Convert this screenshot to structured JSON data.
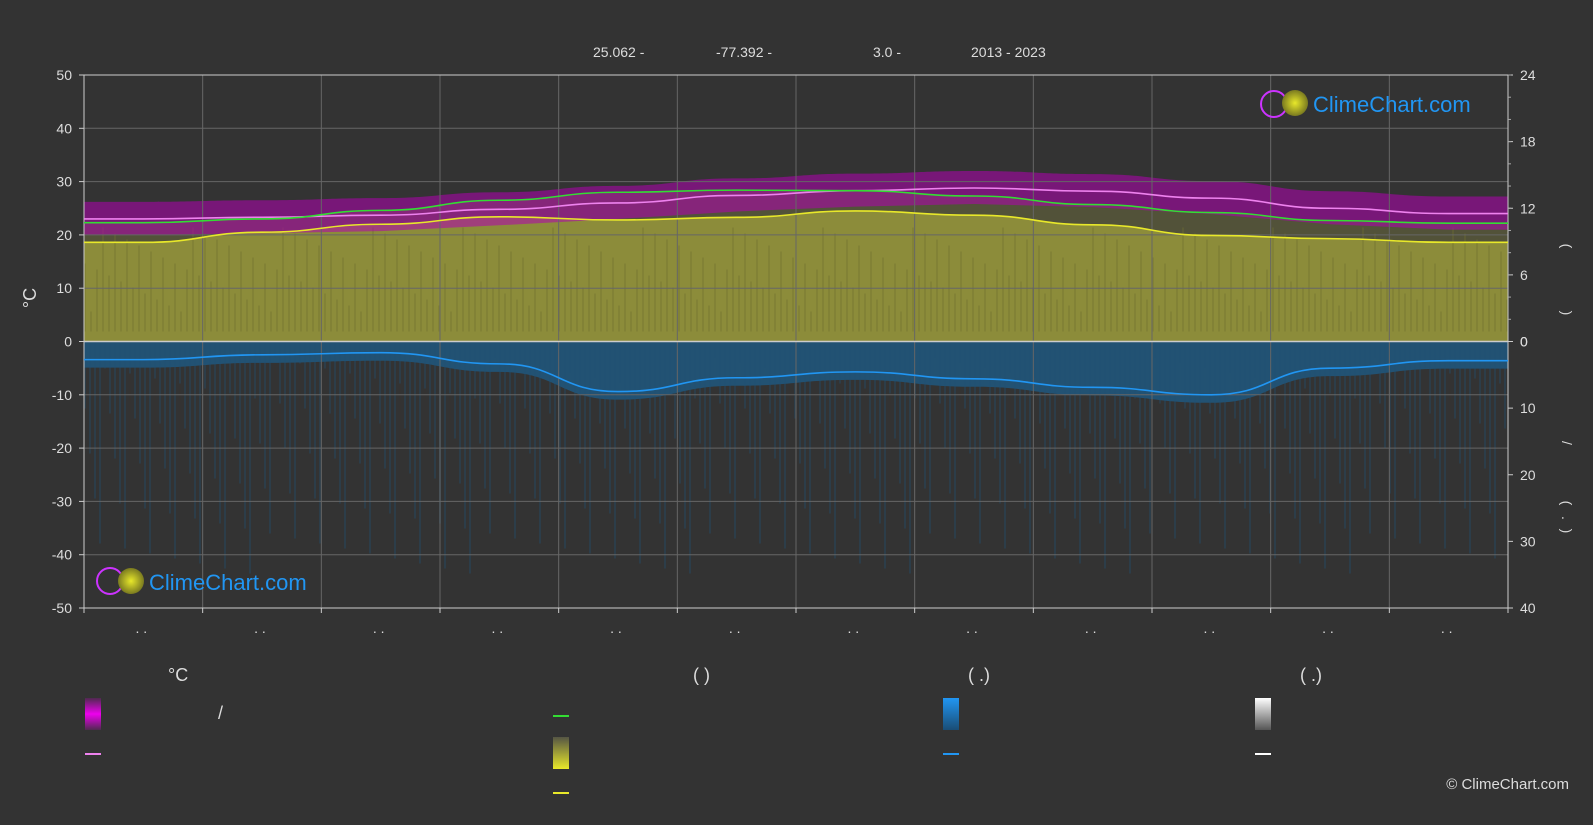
{
  "header": {
    "latitude": "25.062 -",
    "longitude": "-77.392 -",
    "elevation": "3.0 -",
    "years": "2013 - 2023"
  },
  "axes": {
    "left_title": "°C",
    "right_top_label": "(",
    "right_top_label2": ")",
    "right_bottom_label1": "/",
    "right_bottom_label2": "(",
    "right_bottom_label3": ".",
    "right_bottom_label4": ")",
    "month_label": ". ."
  },
  "chart_data": {
    "type": "line",
    "x_months": 12,
    "left_axis": {
      "label": "°C",
      "range": [
        -50,
        50
      ],
      "ticks": [
        50,
        40,
        30,
        20,
        10,
        0,
        -10,
        -20,
        -30,
        -40,
        -50
      ]
    },
    "right_axis_top": {
      "range": [
        0,
        24
      ],
      "ticks": [
        24,
        18,
        12,
        6,
        0
      ]
    },
    "right_axis_bottom": {
      "range": [
        0,
        40
      ],
      "ticks": [
        0,
        10,
        20,
        30,
        40
      ]
    },
    "grid": true,
    "series": [
      {
        "name": "",
        "color": "#ee82ee",
        "values": [
          23.0,
          23.3,
          23.7,
          24.8,
          26.0,
          27.4,
          28.3,
          28.8,
          28.2,
          26.9,
          25.0,
          24.0
        ]
      },
      {
        "name": "",
        "color": "#33dd33",
        "values": [
          22.3,
          23.0,
          24.6,
          26.5,
          28.0,
          28.4,
          28.3,
          27.3,
          25.7,
          24.2,
          22.7,
          22.2
        ]
      },
      {
        "name": "",
        "color": "#e8e82a",
        "values": [
          18.6,
          20.5,
          22.0,
          23.4,
          22.8,
          23.3,
          24.5,
          23.7,
          21.9,
          19.9,
          19.3,
          18.6
        ]
      },
      {
        "name": "",
        "color": "#2196f3",
        "values": [
          -3.4,
          -2.5,
          -2.1,
          -4.2,
          -9.4,
          -6.8,
          -5.7,
          -7.0,
          -8.6,
          -10.0,
          -5.0,
          -3.6
        ]
      }
    ]
  },
  "legend": {
    "col1_head": "°C",
    "col1_row1": "/",
    "col2_head": "(          )",
    "col3_head": "(    .)",
    "col4_head": "(    .)"
  },
  "logo": {
    "text": "ClimeChart.com"
  },
  "copyright": "© ClimeChart.com",
  "colors": {
    "background": "#333333",
    "temp_band": "#c000c0",
    "sunshine_fill": "#8c8c3a",
    "precip": "#1e6fa8",
    "avg_max": "#ee82ee",
    "daylight": "#33dd33",
    "sunshine": "#e8e82a",
    "rain": "#2196f3",
    "snow": "#ffffff"
  }
}
